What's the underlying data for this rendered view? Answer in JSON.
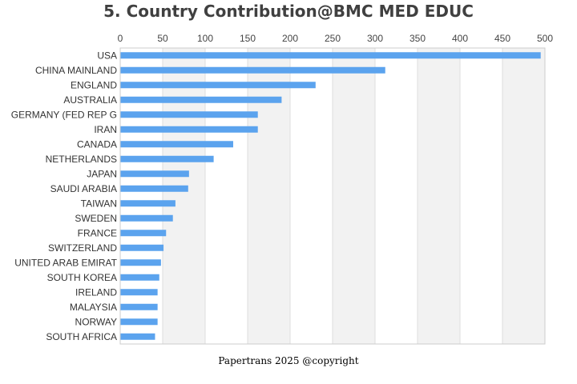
{
  "colors": {
    "bar": "#5ba3ee",
    "band": "#f2f2f2",
    "grid": "#dddddd",
    "axis": "#cccccc"
  },
  "footer": "Papertrans 2025 @copyright",
  "chart_data": {
    "type": "bar",
    "orientation": "horizontal",
    "title": "5. Country Contribution@BMC MED EDUC",
    "xlabel": "",
    "ylabel": "",
    "xlim": [
      0,
      500
    ],
    "xticks": [
      0,
      50,
      100,
      150,
      200,
      250,
      300,
      350,
      400,
      450,
      500
    ],
    "xaxis_position": "top",
    "grid": true,
    "categories": [
      "USA",
      "CHINA MAINLAND",
      "ENGLAND",
      "AUSTRALIA",
      "GERMANY (FED REP G",
      "IRAN",
      "CANADA",
      "NETHERLANDS",
      "JAPAN",
      "SAUDI ARABIA",
      "TAIWAN",
      "SWEDEN",
      "FRANCE",
      "SWITZERLAND",
      "UNITED ARAB EMIRAT",
      "SOUTH KOREA",
      "IRELAND",
      "MALAYSIA",
      "NORWAY",
      "SOUTH AFRICA"
    ],
    "values": [
      495,
      312,
      230,
      190,
      162,
      162,
      133,
      110,
      81,
      80,
      65,
      62,
      54,
      51,
      48,
      46,
      44,
      44,
      44,
      41
    ]
  }
}
